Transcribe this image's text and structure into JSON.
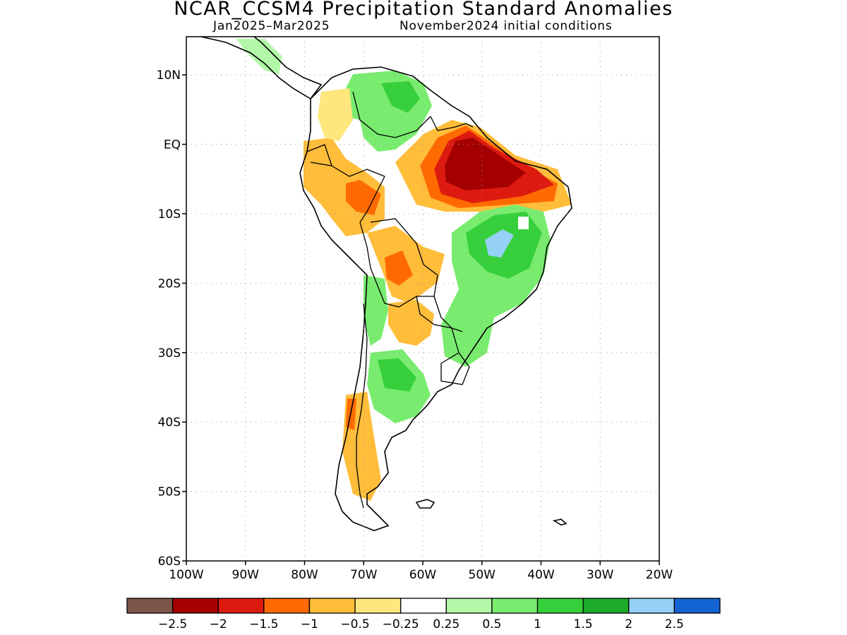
{
  "title": "NCAR_CCSM4 Precipitation Standard Anomalies",
  "subtitle_period": "Jan2025–Mar2025",
  "subtitle_ic": "November2024 initial conditions",
  "map": {
    "lon_range": [
      -100,
      -20
    ],
    "lat_range": [
      -60,
      15.5
    ],
    "lat_ticks": [
      {
        "value": 10,
        "label": "10N"
      },
      {
        "value": 0,
        "label": "EQ"
      },
      {
        "value": -10,
        "label": "10S"
      },
      {
        "value": -20,
        "label": "20S"
      },
      {
        "value": -30,
        "label": "30S"
      },
      {
        "value": -40,
        "label": "40S"
      },
      {
        "value": -50,
        "label": "50S"
      },
      {
        "value": -60,
        "label": "60S"
      }
    ],
    "lon_ticks": [
      {
        "value": -100,
        "label": "100W"
      },
      {
        "value": -90,
        "label": "90W"
      },
      {
        "value": -80,
        "label": "80W"
      },
      {
        "value": -70,
        "label": "70W"
      },
      {
        "value": -60,
        "label": "60W"
      },
      {
        "value": -50,
        "label": "50W"
      },
      {
        "value": -40,
        "label": "40W"
      },
      {
        "value": -30,
        "label": "30W"
      },
      {
        "value": -20,
        "label": "20W"
      }
    ],
    "grid": "dotted"
  },
  "colorbar": {
    "colors": [
      "#7a5548",
      "#a50000",
      "#dd1a10",
      "#ff6a00",
      "#ffbd3a",
      "#ffe67d",
      "#ffffff",
      "#b3f7a8",
      "#79ec6f",
      "#37d03c",
      "#1cab2a",
      "#95d1f5",
      "#1463d2"
    ],
    "labels": [
      "−2.5",
      "−2",
      "−1.5",
      "−1",
      "−0.5",
      "−0.25",
      "0.25",
      "0.5",
      "1",
      "1.5",
      "2",
      "2.5"
    ]
  }
}
